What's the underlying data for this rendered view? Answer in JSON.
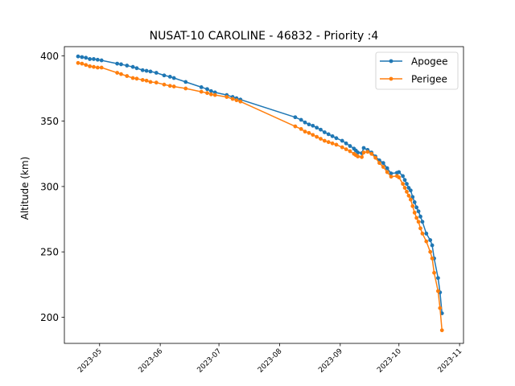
{
  "chart_data": {
    "type": "line",
    "title": "NUSAT-10 CAROLINE - 46832 - Priority :4",
    "xlabel": "",
    "ylabel": "Altitude (km)",
    "x_type": "date",
    "xlim": [
      "2023-04-13",
      "2023-11-03"
    ],
    "ylim": [
      180,
      407
    ],
    "grid": false,
    "legend_position": "top-right",
    "xticks": [
      "2023-05",
      "2023-06",
      "2023-07",
      "2023-08",
      "2023-09",
      "2023-10",
      "2023-11"
    ],
    "yticks": [
      200,
      250,
      300,
      350,
      400
    ],
    "series": [
      {
        "name": "Apogee",
        "color": "#1f77b4",
        "points": [
          [
            "2023-04-20",
            399.5
          ],
          [
            "2023-04-22",
            399
          ],
          [
            "2023-04-24",
            398.5
          ],
          [
            "2023-04-26",
            397.5
          ],
          [
            "2023-04-28",
            397.5
          ],
          [
            "2023-04-30",
            397
          ],
          [
            "2023-05-02",
            396.5
          ],
          [
            "2023-05-10",
            394
          ],
          [
            "2023-05-12",
            393.5
          ],
          [
            "2023-05-15",
            392.5
          ],
          [
            "2023-05-18",
            391.5
          ],
          [
            "2023-05-20",
            390.5
          ],
          [
            "2023-05-23",
            389
          ],
          [
            "2023-05-25",
            388.5
          ],
          [
            "2023-05-27",
            388
          ],
          [
            "2023-05-30",
            387
          ],
          [
            "2023-06-03",
            385
          ],
          [
            "2023-06-06",
            384
          ],
          [
            "2023-06-08",
            383
          ],
          [
            "2023-06-14",
            380
          ],
          [
            "2023-06-22",
            376
          ],
          [
            "2023-06-25",
            374.5
          ],
          [
            "2023-06-27",
            373
          ],
          [
            "2023-06-29",
            372
          ],
          [
            "2023-07-05",
            370
          ],
          [
            "2023-07-08",
            368.5
          ],
          [
            "2023-07-10",
            367.5
          ],
          [
            "2023-07-12",
            366.5
          ],
          [
            "2023-08-09",
            353
          ],
          [
            "2023-08-12",
            351
          ],
          [
            "2023-08-14",
            349
          ],
          [
            "2023-08-16",
            347.5
          ],
          [
            "2023-08-18",
            346.5
          ],
          [
            "2023-08-20",
            345
          ],
          [
            "2023-08-22",
            343.5
          ],
          [
            "2023-08-24",
            341.5
          ],
          [
            "2023-08-26",
            340
          ],
          [
            "2023-08-28",
            338.5
          ],
          [
            "2023-08-30",
            337
          ],
          [
            "2023-09-02",
            335
          ],
          [
            "2023-09-04",
            333
          ],
          [
            "2023-09-06",
            331
          ],
          [
            "2023-09-08",
            329
          ],
          [
            "2023-09-09",
            327.5
          ],
          [
            "2023-09-10",
            326
          ],
          [
            "2023-09-12",
            325.5
          ],
          [
            "2023-09-13",
            329.5
          ],
          [
            "2023-09-15",
            328
          ],
          [
            "2023-09-17",
            326
          ],
          [
            "2023-09-19",
            323
          ],
          [
            "2023-09-21",
            320
          ],
          [
            "2023-09-23",
            318
          ],
          [
            "2023-09-25",
            314
          ],
          [
            "2023-09-27",
            310
          ],
          [
            "2023-09-30",
            310.5
          ],
          [
            "2023-10-01",
            311
          ],
          [
            "2023-10-03",
            308
          ],
          [
            "2023-10-04",
            305
          ],
          [
            "2023-10-05",
            302
          ],
          [
            "2023-10-06",
            299
          ],
          [
            "2023-10-07",
            297
          ],
          [
            "2023-10-08",
            292
          ],
          [
            "2023-10-09",
            288
          ],
          [
            "2023-10-10",
            284
          ],
          [
            "2023-10-11",
            281
          ],
          [
            "2023-10-12",
            277
          ],
          [
            "2023-10-13",
            273
          ],
          [
            "2023-10-15",
            264
          ],
          [
            "2023-10-17",
            259
          ],
          [
            "2023-10-18",
            255
          ],
          [
            "2023-10-19",
            245
          ],
          [
            "2023-10-21",
            230
          ],
          [
            "2023-10-22",
            219
          ],
          [
            "2023-10-23",
            203
          ]
        ]
      },
      {
        "name": "Perigee",
        "color": "#ff7f0e",
        "points": [
          [
            "2023-04-20",
            394.5
          ],
          [
            "2023-04-22",
            394
          ],
          [
            "2023-04-24",
            393
          ],
          [
            "2023-04-26",
            392
          ],
          [
            "2023-04-28",
            391.5
          ],
          [
            "2023-04-30",
            391
          ],
          [
            "2023-05-02",
            391
          ],
          [
            "2023-05-10",
            387
          ],
          [
            "2023-05-12",
            386
          ],
          [
            "2023-05-15",
            384.5
          ],
          [
            "2023-05-18",
            383
          ],
          [
            "2023-05-20",
            382.5
          ],
          [
            "2023-05-23",
            381.5
          ],
          [
            "2023-05-25",
            381
          ],
          [
            "2023-05-27",
            380
          ],
          [
            "2023-05-30",
            379.5
          ],
          [
            "2023-06-03",
            378
          ],
          [
            "2023-06-06",
            377
          ],
          [
            "2023-06-08",
            376.5
          ],
          [
            "2023-06-14",
            375
          ],
          [
            "2023-06-22",
            372.5
          ],
          [
            "2023-06-25",
            371.5
          ],
          [
            "2023-06-27",
            370.5
          ],
          [
            "2023-06-29",
            370
          ],
          [
            "2023-07-05",
            368.5
          ],
          [
            "2023-07-08",
            367
          ],
          [
            "2023-07-10",
            366
          ],
          [
            "2023-07-12",
            365
          ],
          [
            "2023-08-09",
            346
          ],
          [
            "2023-08-12",
            344
          ],
          [
            "2023-08-14",
            342
          ],
          [
            "2023-08-16",
            341
          ],
          [
            "2023-08-18",
            339.5
          ],
          [
            "2023-08-20",
            338
          ],
          [
            "2023-08-22",
            336.5
          ],
          [
            "2023-08-24",
            335
          ],
          [
            "2023-08-26",
            334
          ],
          [
            "2023-08-28",
            333
          ],
          [
            "2023-08-30",
            332
          ],
          [
            "2023-09-02",
            330
          ],
          [
            "2023-09-04",
            328.5
          ],
          [
            "2023-09-06",
            327
          ],
          [
            "2023-09-08",
            325
          ],
          [
            "2023-09-09",
            324
          ],
          [
            "2023-09-10",
            323
          ],
          [
            "2023-09-12",
            322.5
          ],
          [
            "2023-09-13",
            326
          ],
          [
            "2023-09-15",
            326.5
          ],
          [
            "2023-09-17",
            325
          ],
          [
            "2023-09-19",
            322
          ],
          [
            "2023-09-21",
            318
          ],
          [
            "2023-09-23",
            315
          ],
          [
            "2023-09-25",
            311
          ],
          [
            "2023-09-27",
            307.5
          ],
          [
            "2023-09-30",
            308
          ],
          [
            "2023-10-01",
            307
          ],
          [
            "2023-10-03",
            302
          ],
          [
            "2023-10-04",
            299
          ],
          [
            "2023-10-05",
            296
          ],
          [
            "2023-10-06",
            293
          ],
          [
            "2023-10-07",
            290
          ],
          [
            "2023-10-08",
            285
          ],
          [
            "2023-10-09",
            280
          ],
          [
            "2023-10-10",
            276
          ],
          [
            "2023-10-11",
            273
          ],
          [
            "2023-10-12",
            268
          ],
          [
            "2023-10-13",
            264
          ],
          [
            "2023-10-15",
            258
          ],
          [
            "2023-10-17",
            250
          ],
          [
            "2023-10-18",
            245
          ],
          [
            "2023-10-19",
            234
          ],
          [
            "2023-10-21",
            220
          ],
          [
            "2023-10-22",
            207
          ],
          [
            "2023-10-23",
            190
          ]
        ]
      }
    ]
  }
}
